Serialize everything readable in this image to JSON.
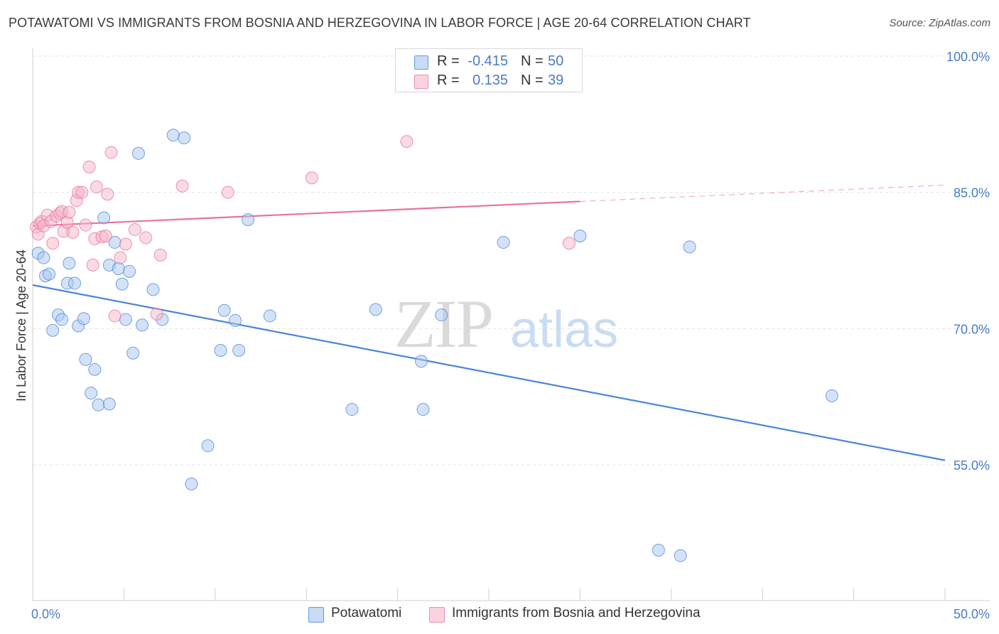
{
  "header": {
    "title": "POTAWATOMI VS IMMIGRANTS FROM BOSNIA AND HERZEGOVINA IN LABOR FORCE | AGE 20-64 CORRELATION CHART",
    "source": "Source: ZipAtlas.com"
  },
  "watermark": {
    "zip": "ZIP",
    "atlas": "atlas"
  },
  "legend": {
    "rows": [
      {
        "r_label": "R =",
        "r_value": "-0.415",
        "n_label": "N =",
        "n_value": "50",
        "color": "#a9c6f0"
      },
      {
        "r_label": "R =",
        "r_value": "0.135",
        "n_label": "N =",
        "n_value": "39",
        "color": "#f5b5c8"
      }
    ],
    "bottom": [
      {
        "label": "Potawatomi",
        "color": "#a9c6f0"
      },
      {
        "label": "Immigrants from Bosnia and Herzegovina",
        "color": "#f5b5c8"
      }
    ]
  },
  "chart_data": {
    "type": "scatter",
    "title": "POTAWATOMI VS IMMIGRANTS FROM BOSNIA AND HERZEGOVINA IN LABOR FORCE | AGE 20-64 CORRELATION CHART",
    "xlabel": "",
    "ylabel": "In Labor Force | Age 20-64",
    "xlim": [
      0,
      50
    ],
    "ylim": [
      40,
      102
    ],
    "x_tick_labels": [
      "0.0%",
      "50.0%"
    ],
    "y_ticks": [
      55,
      70,
      85,
      100
    ],
    "y_tick_labels": [
      "55.0%",
      "70.0%",
      "85.0%",
      "100.0%"
    ],
    "grid": true,
    "series": [
      {
        "name": "Potawatomi",
        "color": "#4a86d8",
        "fill": "#a9c6f0",
        "points": [
          [
            0.3,
            78.3
          ],
          [
            0.6,
            77.8
          ],
          [
            0.7,
            75.8
          ],
          [
            0.9,
            76.0
          ],
          [
            1.1,
            69.8
          ],
          [
            1.4,
            71.5
          ],
          [
            1.6,
            71.0
          ],
          [
            1.9,
            75.0
          ],
          [
            2.0,
            77.2
          ],
          [
            2.3,
            75.0
          ],
          [
            2.5,
            70.3
          ],
          [
            2.8,
            71.1
          ],
          [
            2.9,
            66.6
          ],
          [
            3.2,
            62.9
          ],
          [
            3.4,
            65.5
          ],
          [
            3.6,
            61.6
          ],
          [
            3.9,
            82.2
          ],
          [
            4.2,
            61.7
          ],
          [
            4.2,
            77.0
          ],
          [
            4.5,
            79.5
          ],
          [
            4.7,
            76.6
          ],
          [
            4.9,
            74.9
          ],
          [
            5.1,
            71.0
          ],
          [
            5.3,
            76.3
          ],
          [
            5.5,
            67.3
          ],
          [
            5.8,
            89.3
          ],
          [
            6.0,
            70.4
          ],
          [
            6.6,
            74.3
          ],
          [
            7.1,
            71.0
          ],
          [
            7.7,
            91.3
          ],
          [
            8.3,
            91.0
          ],
          [
            8.7,
            52.9
          ],
          [
            9.6,
            57.1
          ],
          [
            10.3,
            67.6
          ],
          [
            10.5,
            72.0
          ],
          [
            11.1,
            70.9
          ],
          [
            11.3,
            67.6
          ],
          [
            11.8,
            82.0
          ],
          [
            13.0,
            71.4
          ],
          [
            17.5,
            61.1
          ],
          [
            18.8,
            72.1
          ],
          [
            21.3,
            66.4
          ],
          [
            21.4,
            61.1
          ],
          [
            22.4,
            71.5
          ],
          [
            25.8,
            79.5
          ],
          [
            30.0,
            80.2
          ],
          [
            34.3,
            45.6
          ],
          [
            35.5,
            45.0
          ],
          [
            36.0,
            79.0
          ],
          [
            43.8,
            62.6
          ]
        ]
      },
      {
        "name": "Immigrants from Bosnia and Herzegovina",
        "color": "#e8739a",
        "fill": "#f5b5c8",
        "points": [
          [
            0.2,
            81.2
          ],
          [
            0.3,
            80.4
          ],
          [
            0.4,
            81.6
          ],
          [
            0.5,
            81.8
          ],
          [
            0.6,
            81.3
          ],
          [
            0.8,
            82.5
          ],
          [
            1.0,
            81.8
          ],
          [
            1.1,
            79.4
          ],
          [
            1.3,
            82.4
          ],
          [
            1.5,
            82.7
          ],
          [
            1.6,
            82.9
          ],
          [
            1.7,
            80.7
          ],
          [
            1.9,
            81.7
          ],
          [
            2.0,
            82.8
          ],
          [
            2.2,
            80.6
          ],
          [
            2.4,
            84.1
          ],
          [
            2.5,
            85.0
          ],
          [
            2.7,
            85.0
          ],
          [
            2.9,
            81.4
          ],
          [
            3.1,
            87.8
          ],
          [
            3.3,
            77.0
          ],
          [
            3.4,
            79.9
          ],
          [
            3.5,
            85.6
          ],
          [
            3.8,
            80.1
          ],
          [
            4.0,
            80.2
          ],
          [
            4.1,
            84.8
          ],
          [
            4.3,
            89.4
          ],
          [
            4.5,
            71.4
          ],
          [
            4.8,
            77.8
          ],
          [
            5.1,
            79.3
          ],
          [
            5.6,
            80.9
          ],
          [
            6.2,
            80.0
          ],
          [
            6.8,
            71.6
          ],
          [
            7.0,
            78.1
          ],
          [
            8.2,
            85.7
          ],
          [
            10.7,
            85.0
          ],
          [
            15.3,
            86.6
          ],
          [
            20.5,
            90.6
          ],
          [
            29.4,
            79.4
          ]
        ]
      }
    ],
    "trend_lines": [
      {
        "series": "Potawatomi",
        "x": [
          0,
          50
        ],
        "y": [
          74.8,
          55.5
        ],
        "style": "solid"
      },
      {
        "series": "Immigrants from Bosnia and Herzegovina",
        "x": [
          0,
          30
        ],
        "y": [
          81.3,
          84.0
        ],
        "style": "solid"
      },
      {
        "series": "Immigrants from Bosnia and Herzegovina",
        "x": [
          30,
          50
        ],
        "y": [
          84.0,
          85.8
        ],
        "style": "dashed"
      }
    ]
  }
}
